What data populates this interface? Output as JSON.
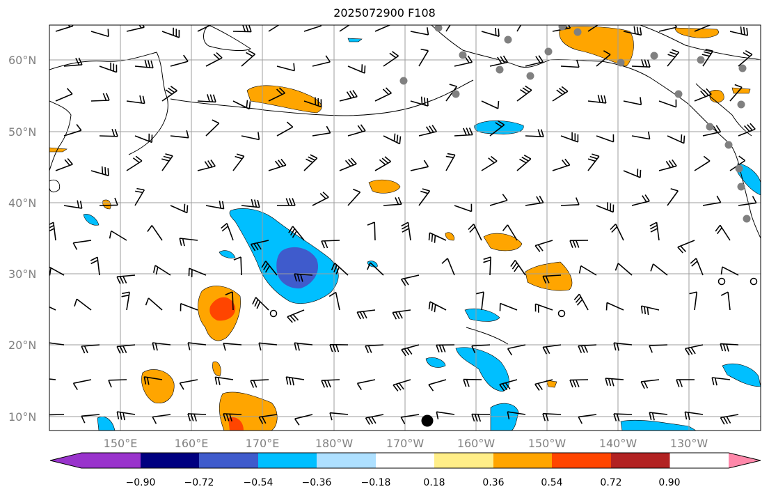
{
  "title": "2025072900 F108",
  "map": {
    "lat_labels": [
      "60°N",
      "50°N",
      "40°N",
      "30°N",
      "20°N",
      "10°N"
    ],
    "lon_labels": [
      "150°E",
      "160°E",
      "170°E",
      "180°W",
      "170°W",
      "160°W",
      "150°W",
      "140°W",
      "130°W"
    ],
    "label_color": "#808080",
    "grid_color": "#9e9e9e"
  },
  "colorbar": {
    "ticks": [
      "−0.90",
      "−0.72",
      "−0.54",
      "−0.36",
      "−0.18",
      "0.18",
      "0.36",
      "0.54",
      "0.72",
      "0.90"
    ],
    "colors": [
      "#9933cc",
      "#000080",
      "#3f5bcc",
      "#00bfff",
      "#aee0ff",
      "#ffffff",
      "#ffee88",
      "#ffa500",
      "#ff4500",
      "#b22222",
      "#ff88aa"
    ]
  }
}
